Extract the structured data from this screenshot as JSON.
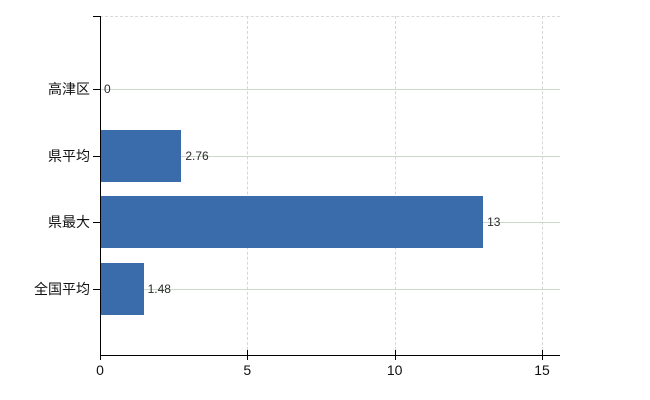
{
  "chart_data": {
    "type": "bar",
    "orientation": "horizontal",
    "categories": [
      "高津区",
      "県平均",
      "県最大",
      "全国平均"
    ],
    "values": [
      0,
      2.76,
      13,
      1.48
    ],
    "value_labels": [
      "0",
      "2.76",
      "13",
      "1.48"
    ],
    "x_ticks": [
      0,
      5,
      10,
      15
    ],
    "x_tick_labels": [
      "0",
      "5",
      "10",
      "15"
    ],
    "xlim": [
      0,
      15
    ],
    "title": "",
    "xlabel": "",
    "ylabel": "",
    "grid": true,
    "legend": false,
    "colors": {
      "bar": "#3a6cab",
      "axis": "#000000",
      "grid_horizontal": "#ccd8cc",
      "grid_vertical": "#d6d6da",
      "plot_top_border": "#d9d9d9",
      "category_label": "#111111",
      "value_label": "#2b2b2b",
      "background": "#ffffff"
    }
  }
}
